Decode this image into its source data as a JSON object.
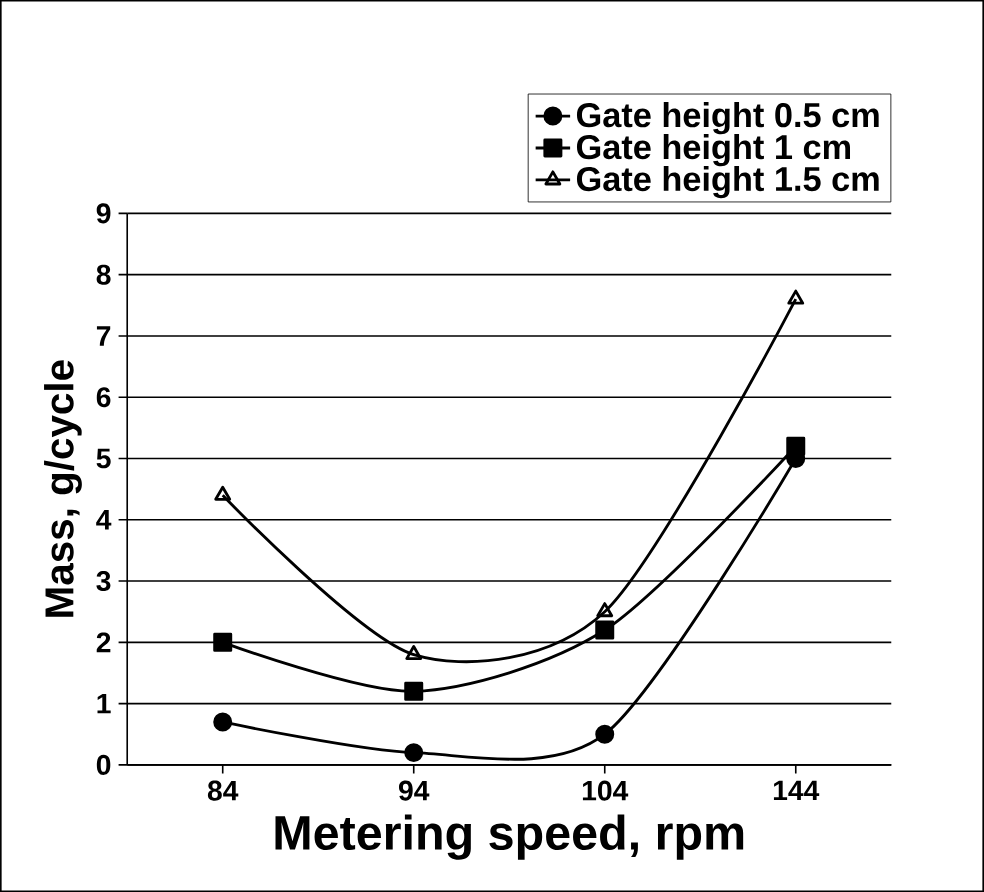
{
  "chart_data": {
    "type": "line",
    "xlabel": "Metering speed, rpm",
    "ylabel": "Mass, g/cycle",
    "categories": [
      "84",
      "94",
      "104",
      "144"
    ],
    "series": [
      {
        "name": "Gate height 0.5 cm",
        "color": "#000000",
        "marker": "circle",
        "values": [
          0.7,
          0.2,
          0.5,
          5.0
        ]
      },
      {
        "name": "Gate height 1 cm",
        "color": "#000000",
        "marker": "square",
        "values": [
          2.0,
          1.2,
          2.2,
          5.2
        ]
      },
      {
        "name": "Gate height 1.5 cm",
        "color": "#000000",
        "marker": "triangle",
        "values": [
          4.4,
          1.8,
          2.5,
          7.6
        ]
      }
    ],
    "ylim": [
      0,
      9
    ],
    "yticks": [
      0,
      1,
      2,
      3,
      4,
      5,
      6,
      7,
      8,
      9
    ],
    "grid": "y",
    "legend": "top right",
    "line_style": "solid"
  }
}
